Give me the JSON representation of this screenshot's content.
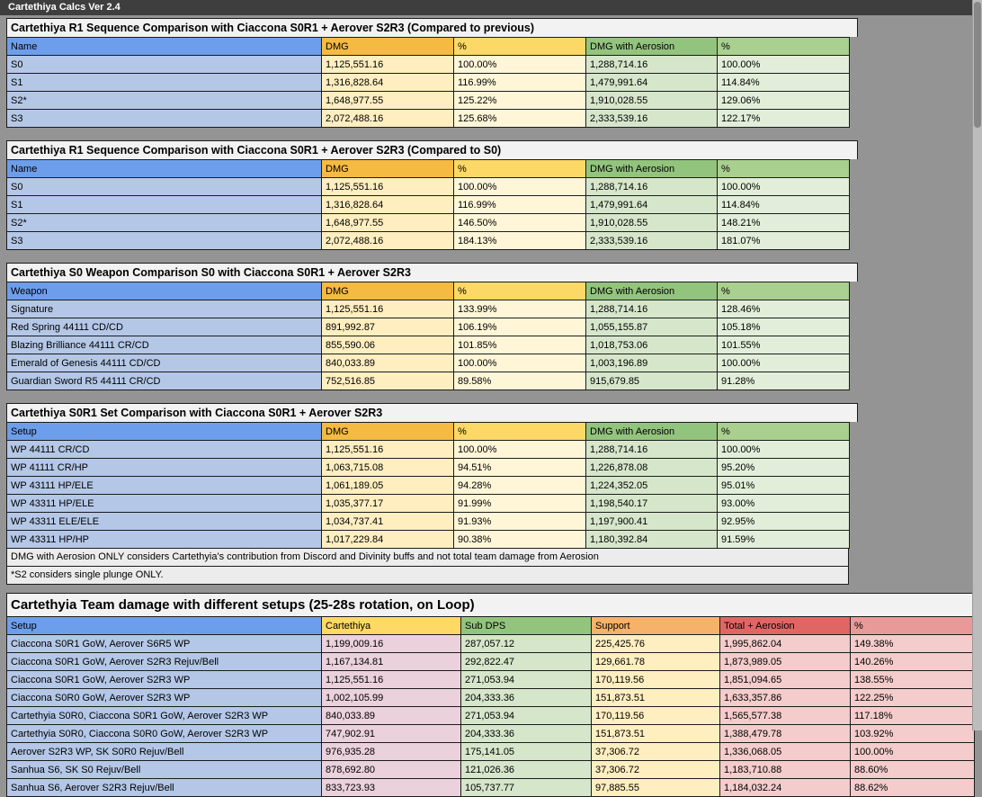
{
  "app": {
    "title_bar": "Cartethiya Calcs Ver 2.4"
  },
  "colors": {
    "page_background": "#949494",
    "topbar_background": "#3e3e3e",
    "header_blue": "#6d9eeb",
    "cell_blue": "#b4c7e7",
    "header_amber": "#f5ba42",
    "header_light_amber": "#fcd966",
    "cell_cream": "#ffeec0",
    "cell_light_cream": "#fff6d8",
    "header_green": "#93c47d",
    "header_light_green": "#a9d08e",
    "cell_green": "#d6e6cb",
    "cell_light_green": "#e2eed9",
    "header_yellow": "#ffd966",
    "cell_pink": "#ead1dc",
    "header_orange": "#f6b26b",
    "header_red": "#e06666",
    "header_light_red": "#ea9999",
    "cell_red": "#f4cccc",
    "title_row_background": "#f2f2f2",
    "note_row_background": "#ececec"
  },
  "tables": [
    {
      "title": "Cartethiya R1 Sequence Comparison with Ciaccona S0R1 + Aerover S2R3 (Compared to previous)",
      "headers": [
        "Name",
        "DMG",
        "%",
        "DMG with Aerosion",
        "%"
      ],
      "rows": [
        [
          "S0",
          "1,125,551.16",
          "100.00%",
          "1,288,714.16",
          "100.00%"
        ],
        [
          "S1",
          "1,316,828.64",
          "116.99%",
          "1,479,991.64",
          "114.84%"
        ],
        [
          "S2*",
          "1,648,977.55",
          "125.22%",
          "1,910,028.55",
          "129.06%"
        ],
        [
          "S3",
          "2,072,488.16",
          "125.68%",
          "2,333,539.16",
          "122.17%"
        ]
      ]
    },
    {
      "title": "Cartethiya R1 Sequence Comparison with Ciaccona S0R1 + Aerover S2R3 (Compared to S0)",
      "headers": [
        "Name",
        "DMG",
        "%",
        "DMG with Aerosion",
        "%"
      ],
      "rows": [
        [
          "S0",
          "1,125,551.16",
          "100.00%",
          "1,288,714.16",
          "100.00%"
        ],
        [
          "S1",
          "1,316,828.64",
          "116.99%",
          "1,479,991.64",
          "114.84%"
        ],
        [
          "S2*",
          "1,648,977.55",
          "146.50%",
          "1,910,028.55",
          "148.21%"
        ],
        [
          "S3",
          "2,072,488.16",
          "184.13%",
          "2,333,539.16",
          "181.07%"
        ]
      ]
    },
    {
      "title": "Cartethiya S0 Weapon Comparison S0 with Ciaccona S0R1 + Aerover S2R3",
      "headers": [
        "Weapon",
        "DMG",
        "%",
        "DMG with Aerosion",
        "%"
      ],
      "rows": [
        [
          "Signature",
          "1,125,551.16",
          "133.99%",
          "1,288,714.16",
          "128.46%"
        ],
        [
          "Red Spring 44111 CD/CD",
          "891,992.87",
          "106.19%",
          "1,055,155.87",
          "105.18%"
        ],
        [
          "Blazing Brilliance 44111 CR/CD",
          "855,590.06",
          "101.85%",
          "1,018,753.06",
          "101.55%"
        ],
        [
          "Emerald of Genesis 44111 CD/CD",
          "840,033.89",
          "100.00%",
          "1,003,196.89",
          "100.00%"
        ],
        [
          "Guardian Sword R5 44111 CR/CD",
          "752,516.85",
          "89.58%",
          "915,679.85",
          "91.28%"
        ]
      ]
    },
    {
      "title": "Cartethiya S0R1 Set Comparison with Ciaccona S0R1 + Aerover S2R3",
      "headers": [
        "Setup",
        "DMG",
        "%",
        "DMG with Aerosion",
        "%"
      ],
      "rows": [
        [
          "WP 44111 CR/CD",
          "1,125,551.16",
          "100.00%",
          "1,288,714.16",
          "100.00%"
        ],
        [
          "WP 41111 CR/HP",
          "1,063,715.08",
          "94.51%",
          "1,226,878.08",
          "95.20%"
        ],
        [
          "WP 43111 HP/ELE",
          "1,061,189.05",
          "94.28%",
          "1,224,352.05",
          "95.01%"
        ],
        [
          "WP 43311 HP/ELE",
          "1,035,377.17",
          "91.99%",
          "1,198,540.17",
          "93.00%"
        ],
        [
          "WP 43311 ELE/ELE",
          "1,034,737.41",
          "91.93%",
          "1,197,900.41",
          "92.95%"
        ],
        [
          "WP 43311 HP/HP",
          "1,017,229.84",
          "90.38%",
          "1,180,392.84",
          "91.59%"
        ]
      ]
    }
  ],
  "notes": [
    "DMG with Aerosion ONLY considers Cartethyia's contribution from Discord and Divinity buffs and not total team damage from Aerosion",
    "*S2 considers single plunge ONLY."
  ],
  "team_table": {
    "title": "Cartethyia Team damage with different setups (25-28s rotation, on Loop)",
    "headers": [
      "Setup",
      "Cartethiya",
      "Sub DPS",
      "Support",
      "Total + Aerosion",
      "%"
    ],
    "rows": [
      [
        "Ciaccona S0R1 GoW, Aerover S6R5 WP",
        "1,199,009.16",
        "287,057.12",
        "225,425.76",
        "1,995,862.04",
        "149.38%"
      ],
      [
        "Ciaccona S0R1 GoW, Aerover S2R3 Rejuv/Bell",
        "1,167,134.81",
        "292,822.47",
        "129,661.78",
        "1,873,989.05",
        "140.26%"
      ],
      [
        "Ciaccona S0R1 GoW, Aerover S2R3 WP",
        "1,125,551.16",
        "271,053.94",
        "170,119.56",
        "1,851,094.65",
        "138.55%"
      ],
      [
        "Ciaccona S0R0 GoW, Aerover S2R3 WP",
        "1,002,105.99",
        "204,333.36",
        "151,873.51",
        "1,633,357.86",
        "122.25%"
      ],
      [
        "Cartethyia S0R0, Ciaccona S0R1 GoW, Aerover S2R3 WP",
        "840,033.89",
        "271,053.94",
        "170,119.56",
        "1,565,577.38",
        "117.18%"
      ],
      [
        "Cartethyia S0R0, Ciaccona S0R0 GoW, Aerover S2R3 WP",
        "747,902.91",
        "204,333.36",
        "151,873.51",
        "1,388,479.78",
        "103.92%"
      ],
      [
        "Aerover S2R3 WP, SK S0R0 Rejuv/Bell",
        "976,935.28",
        "175,141.05",
        "37,306.72",
        "1,336,068.05",
        "100.00%"
      ],
      [
        "Sanhua S6, SK S0 Rejuv/Bell",
        "878,692.80",
        "121,026.36",
        "37,306.72",
        "1,183,710.88",
        "88.60%"
      ],
      [
        "Sanhua S6, Aerover S2R3 Rejuv/Bell",
        "833,723.93",
        "105,737.77",
        "97,885.55",
        "1,184,032.24",
        "88.62%"
      ]
    ]
  }
}
